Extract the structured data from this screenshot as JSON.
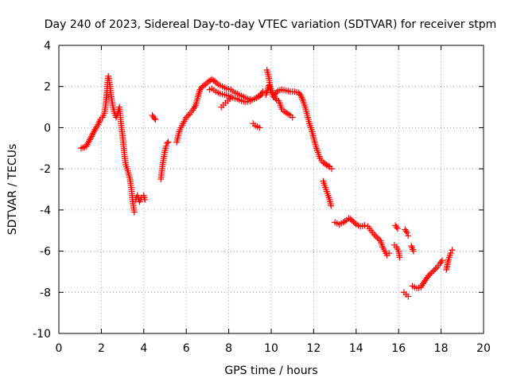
{
  "chart_data": {
    "type": "scatter",
    "title": "Day 240 of 2023, Sidereal Day-to-day VTEC variation (SDTVAR) for receiver stpm",
    "xlabel": "GPS time / hours",
    "ylabel": "SDTVAR / TECUs",
    "xlim": [
      0,
      20
    ],
    "ylim": [
      -10,
      4
    ],
    "xticks": [
      0,
      2,
      4,
      6,
      8,
      10,
      12,
      14,
      16,
      18,
      20
    ],
    "yticks": [
      -10,
      -8,
      -6,
      -4,
      -2,
      0,
      2,
      4
    ],
    "grid": true,
    "marker": "+",
    "color": "#ff0000",
    "series": [
      {
        "name": "SDTVAR",
        "segments": [
          [
            [
              1.05,
              -1.0
            ],
            [
              1.3,
              -0.9
            ],
            [
              1.5,
              -0.5
            ],
            [
              1.7,
              -0.1
            ],
            [
              1.85,
              0.15
            ],
            [
              1.95,
              0.4
            ],
            [
              2.05,
              0.5
            ],
            [
              2.15,
              0.7
            ],
            [
              2.22,
              1.2
            ],
            [
              2.27,
              1.8
            ],
            [
              2.3,
              2.3
            ],
            [
              2.33,
              2.5
            ],
            [
              2.37,
              2.3
            ],
            [
              2.42,
              1.9
            ],
            [
              2.48,
              1.4
            ],
            [
              2.55,
              1.0
            ],
            [
              2.62,
              0.7
            ],
            [
              2.7,
              0.5
            ],
            [
              2.78,
              0.7
            ],
            [
              2.85,
              1.0
            ],
            [
              2.9,
              0.5
            ],
            [
              2.95,
              0.0
            ],
            [
              3.0,
              -0.4
            ],
            [
              3.05,
              -0.9
            ],
            [
              3.1,
              -1.4
            ],
            [
              3.15,
              -1.8
            ],
            [
              3.25,
              -2.1
            ],
            [
              3.35,
              -2.5
            ],
            [
              3.42,
              -3.0
            ],
            [
              3.47,
              -3.5
            ],
            [
              3.52,
              -3.9
            ],
            [
              3.55,
              -4.1
            ]
          ],
          [
            [
              3.5,
              -3.6
            ],
            [
              3.6,
              -3.5
            ],
            [
              3.7,
              -3.3
            ],
            [
              3.8,
              -3.6
            ],
            [
              3.9,
              -3.4
            ],
            [
              4.0,
              -3.3
            ],
            [
              4.05,
              -3.5
            ]
          ],
          [
            [
              4.4,
              0.6
            ],
            [
              4.5,
              0.45
            ],
            [
              4.55,
              0.4
            ]
          ],
          [
            [
              4.8,
              -2.5
            ],
            [
              4.85,
              -2.1
            ],
            [
              4.9,
              -1.7
            ],
            [
              4.95,
              -1.4
            ],
            [
              5.0,
              -1.1
            ],
            [
              5.05,
              -0.9
            ],
            [
              5.1,
              -0.75
            ],
            [
              5.15,
              -0.7
            ]
          ],
          [
            [
              5.55,
              -0.7
            ],
            [
              5.62,
              -0.4
            ],
            [
              5.7,
              -0.1
            ],
            [
              5.8,
              0.1
            ],
            [
              5.9,
              0.3
            ],
            [
              6.0,
              0.5
            ],
            [
              6.15,
              0.65
            ],
            [
              6.3,
              0.85
            ],
            [
              6.45,
              1.1
            ],
            [
              6.55,
              1.5
            ],
            [
              6.65,
              1.85
            ],
            [
              6.75,
              2.0
            ],
            [
              6.9,
              2.1
            ],
            [
              7.05,
              2.25
            ],
            [
              7.2,
              2.35
            ],
            [
              7.35,
              2.25
            ],
            [
              7.5,
              2.1
            ],
            [
              7.7,
              2.0
            ],
            [
              7.9,
              1.9
            ],
            [
              8.1,
              1.85
            ],
            [
              8.3,
              1.7
            ],
            [
              8.5,
              1.6
            ],
            [
              8.7,
              1.5
            ],
            [
              8.9,
              1.4
            ],
            [
              9.1,
              1.35
            ],
            [
              9.3,
              1.45
            ],
            [
              9.5,
              1.6
            ],
            [
              9.6,
              1.75
            ]
          ],
          [
            [
              7.1,
              1.85
            ],
            [
              7.2,
              1.9
            ],
            [
              7.4,
              1.75
            ],
            [
              7.6,
              1.65
            ],
            [
              7.8,
              1.6
            ],
            [
              8.0,
              1.55
            ],
            [
              8.2,
              1.45
            ],
            [
              8.4,
              1.4
            ],
            [
              8.6,
              1.3
            ],
            [
              8.8,
              1.25
            ],
            [
              9.0,
              1.3
            ],
            [
              9.2,
              1.4
            ],
            [
              9.4,
              1.5
            ],
            [
              9.55,
              1.6
            ]
          ],
          [
            [
              7.65,
              1.0
            ],
            [
              7.75,
              1.1
            ],
            [
              7.85,
              1.2
            ],
            [
              7.95,
              1.3
            ],
            [
              8.05,
              1.4
            ]
          ],
          [
            [
              9.15,
              0.2
            ],
            [
              9.25,
              0.1
            ],
            [
              9.35,
              0.05
            ],
            [
              9.45,
              0.0
            ]
          ],
          [
            [
              9.8,
              2.8
            ],
            [
              9.88,
              2.5
            ],
            [
              9.95,
              2.0
            ],
            [
              10.05,
              1.7
            ],
            [
              10.15,
              1.5
            ],
            [
              10.25,
              1.35
            ],
            [
              10.35,
              1.3
            ]
          ],
          [
            [
              9.75,
              1.6
            ],
            [
              9.82,
              1.8
            ],
            [
              9.9,
              2.05
            ],
            [
              9.97,
              1.8
            ],
            [
              10.1,
              1.5
            ],
            [
              10.2,
              1.65
            ],
            [
              10.32,
              1.8
            ],
            [
              10.5,
              1.85
            ],
            [
              10.7,
              1.8
            ],
            [
              10.9,
              1.75
            ],
            [
              11.1,
              1.75
            ],
            [
              11.3,
              1.7
            ],
            [
              11.4,
              1.55
            ],
            [
              11.5,
              1.3
            ],
            [
              11.6,
              1.0
            ],
            [
              11.7,
              0.6
            ],
            [
              11.8,
              0.2
            ],
            [
              11.9,
              -0.1
            ],
            [
              12.0,
              -0.5
            ],
            [
              12.1,
              -0.9
            ],
            [
              12.2,
              -1.2
            ],
            [
              12.3,
              -1.5
            ],
            [
              12.45,
              -1.7
            ],
            [
              12.6,
              -1.8
            ],
            [
              12.75,
              -1.9
            ],
            [
              12.85,
              -2.0
            ]
          ],
          [
            [
              10.4,
              1.2
            ],
            [
              10.5,
              0.9
            ],
            [
              10.6,
              0.8
            ],
            [
              10.75,
              0.7
            ],
            [
              10.9,
              0.6
            ],
            [
              11.0,
              0.5
            ]
          ],
          [
            [
              12.45,
              -2.6
            ],
            [
              12.55,
              -2.9
            ],
            [
              12.65,
              -3.2
            ],
            [
              12.75,
              -3.5
            ],
            [
              12.82,
              -3.8
            ]
          ],
          [
            [
              13.0,
              -4.6
            ],
            [
              13.2,
              -4.7
            ],
            [
              13.4,
              -4.6
            ],
            [
              13.55,
              -4.5
            ],
            [
              13.65,
              -4.4
            ],
            [
              13.8,
              -4.5
            ],
            [
              14.0,
              -4.7
            ],
            [
              14.2,
              -4.8
            ],
            [
              14.4,
              -4.75
            ],
            [
              14.55,
              -4.8
            ],
            [
              14.7,
              -5.0
            ],
            [
              14.85,
              -5.2
            ],
            [
              15.0,
              -5.35
            ],
            [
              15.15,
              -5.5
            ],
            [
              15.25,
              -5.8
            ],
            [
              15.35,
              -6.0
            ],
            [
              15.45,
              -6.2
            ],
            [
              15.55,
              -6.1
            ]
          ],
          [
            [
              15.8,
              -5.7
            ],
            [
              15.9,
              -5.8
            ],
            [
              16.0,
              -6.0
            ],
            [
              16.05,
              -6.3
            ]
          ],
          [
            [
              15.85,
              -4.75
            ],
            [
              15.95,
              -4.9
            ]
          ],
          [
            [
              16.3,
              -4.95
            ],
            [
              16.4,
              -5.1
            ],
            [
              16.45,
              -5.25
            ]
          ],
          [
            [
              16.6,
              -5.75
            ],
            [
              16.7,
              -6.0
            ]
          ],
          [
            [
              16.25,
              -8.0
            ],
            [
              16.35,
              -8.1
            ],
            [
              16.45,
              -8.2
            ]
          ],
          [
            [
              16.65,
              -7.7
            ],
            [
              16.85,
              -7.8
            ],
            [
              17.05,
              -7.75
            ],
            [
              17.2,
              -7.5
            ],
            [
              17.4,
              -7.2
            ],
            [
              17.6,
              -7.0
            ],
            [
              17.8,
              -6.8
            ],
            [
              17.95,
              -6.6
            ],
            [
              18.05,
              -6.45
            ]
          ],
          [
            [
              18.25,
              -6.9
            ],
            [
              18.35,
              -6.4
            ],
            [
              18.45,
              -6.1
            ],
            [
              18.52,
              -5.95
            ]
          ]
        ]
      }
    ]
  }
}
